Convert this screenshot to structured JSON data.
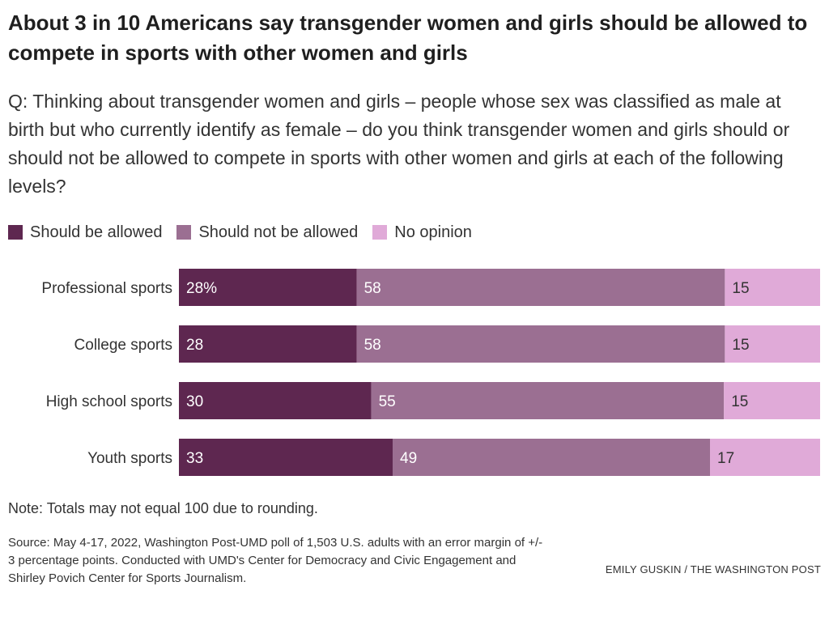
{
  "title": "About 3 in 10 Americans say transgender women and girls should be allowed to compete in sports with other women and girls",
  "question": "Q: Thinking about transgender women and girls – people whose sex was classified as male at birth but who currently identify as female – do you think transgender women and girls should or should not be allowed to compete in sports with other women and girls at each of the following levels?",
  "note": "Note: Totals may not equal 100 due to rounding.",
  "source": "Source: May 4-17, 2022, Washington Post-UMD poll of 1,503 U.S. adults with an error margin of +/- 3 percentage points. Conducted with UMD's Center for Democracy and Civic Engagement and Shirley Povich Center for Sports Journalism.",
  "credit": "EMILY GUSKIN / THE WASHINGTON POST",
  "colors": {
    "should_be_allowed": "#5e2750",
    "should_not_be_allowed": "#9b6f92",
    "no_opinion": "#e0aad8"
  },
  "chart_data": {
    "type": "bar",
    "orientation": "horizontal",
    "stacked": true,
    "categories": [
      "Professional sports",
      "College sports",
      "High school sports",
      "Youth sports"
    ],
    "series": [
      {
        "name": "Should be allowed",
        "values": [
          28,
          28,
          30,
          33
        ],
        "labels": [
          "28%",
          "28",
          "30",
          "33"
        ]
      },
      {
        "name": "Should not be allowed",
        "values": [
          58,
          58,
          55,
          49
        ],
        "labels": [
          "58",
          "58",
          "55",
          "49"
        ]
      },
      {
        "name": "No opinion",
        "values": [
          15,
          15,
          15,
          17
        ],
        "labels": [
          "15",
          "15",
          "15",
          "17"
        ]
      }
    ],
    "legend_position": "top-left",
    "grid": false
  }
}
